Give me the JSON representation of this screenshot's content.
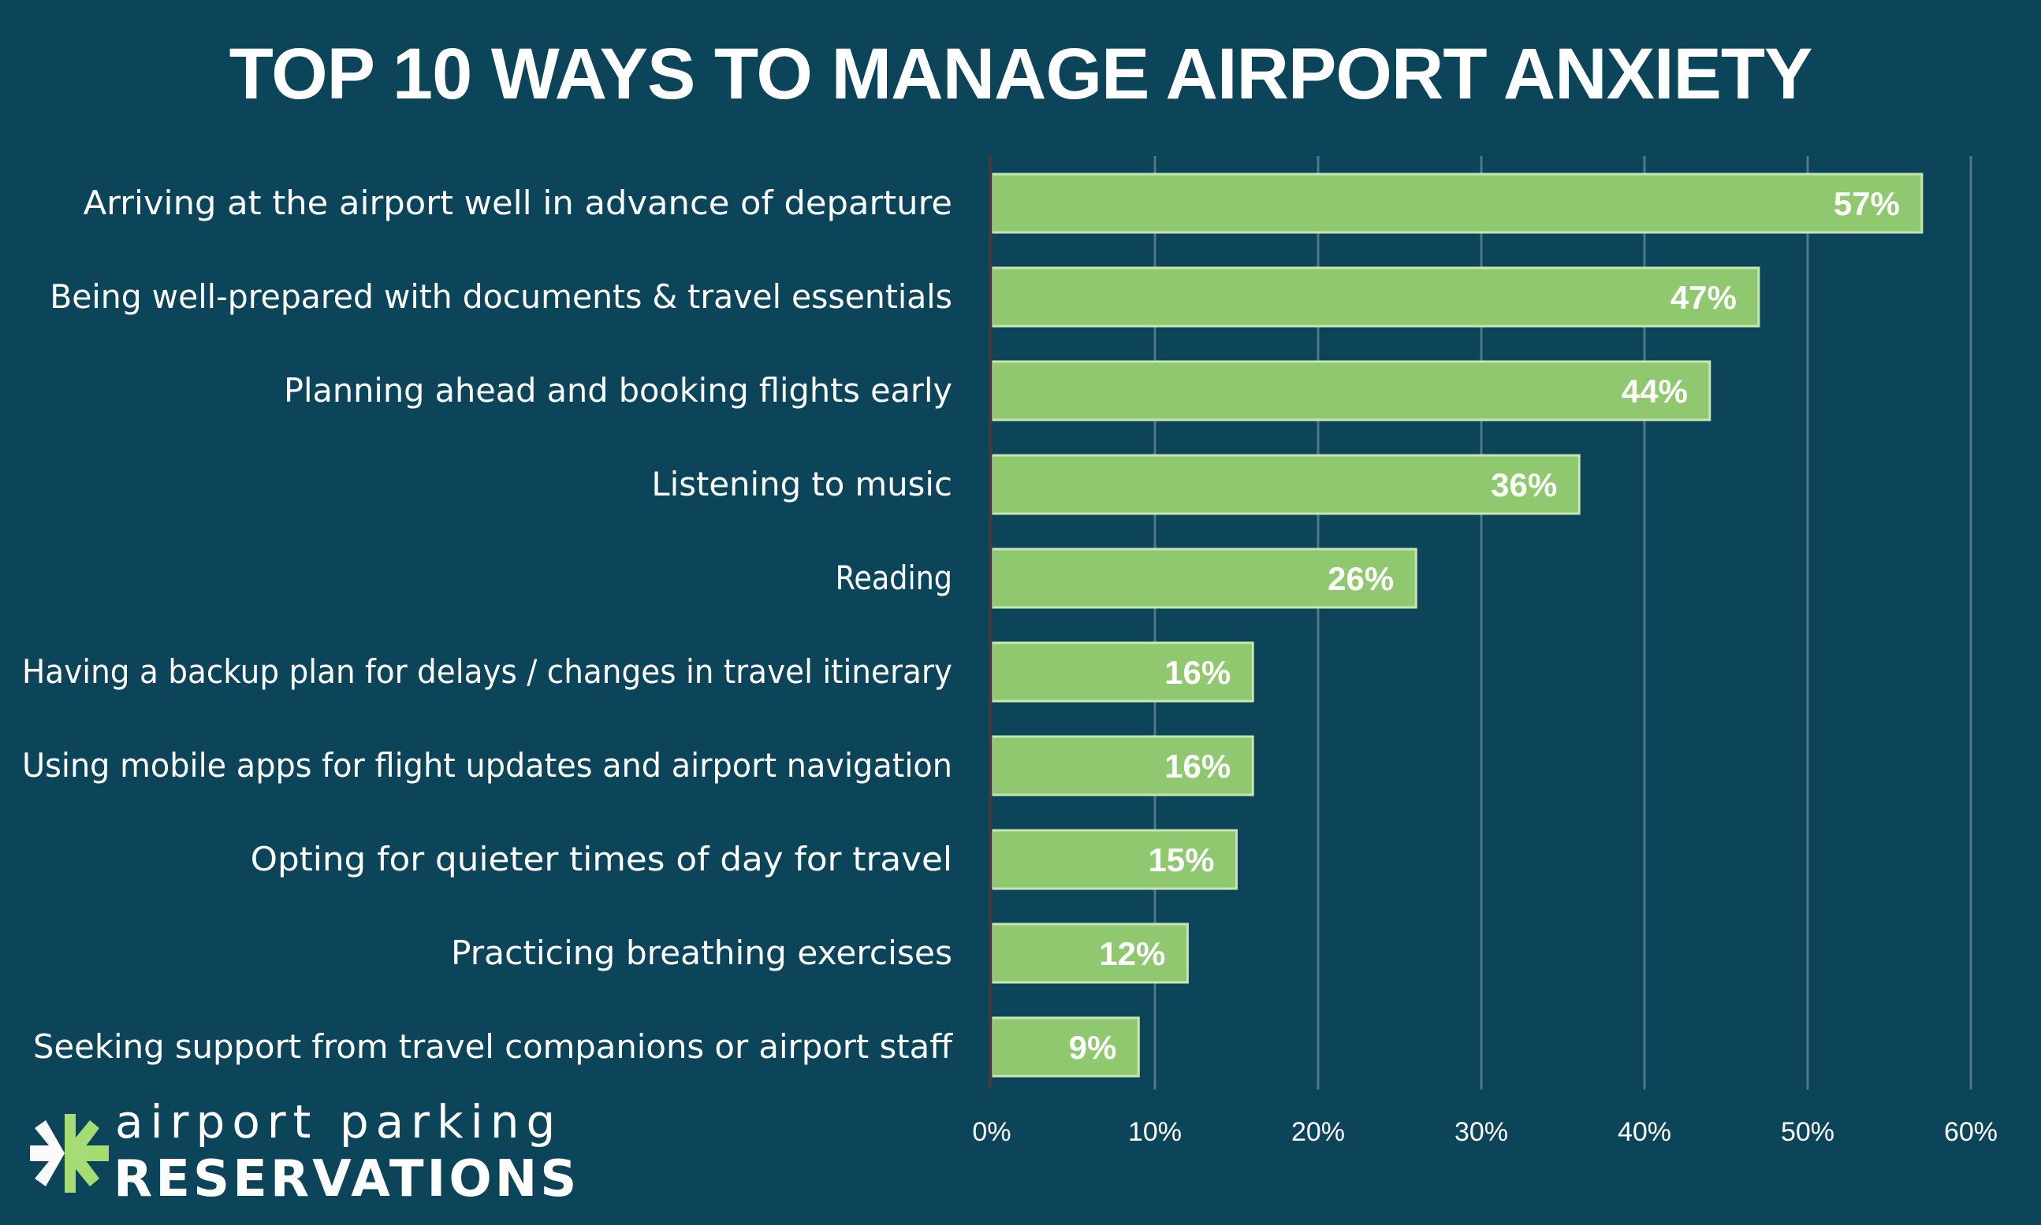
{
  "chart_data": {
    "type": "bar",
    "orientation": "horizontal",
    "title": "TOP 10 WAYS TO MANAGE AIRPORT ANXIETY",
    "categories": [
      "Arriving at the airport well in advance of departure",
      "Being well-prepared with documents & travel essentials",
      "Planning ahead and booking flights early",
      "Listening to music",
      "Reading",
      "Having a backup plan for delays / changes in travel itinerary",
      "Using mobile apps for flight updates and airport navigation",
      "Opting for quieter times of day for travel",
      "Practicing breathing exercises",
      "Seeking support from travel companions or airport staff"
    ],
    "values": [
      57,
      47,
      44,
      36,
      26,
      16,
      16,
      15,
      12,
      9
    ],
    "data_labels": [
      "57%",
      "47%",
      "44%",
      "36%",
      "26%",
      "16%",
      "16%",
      "15%",
      "12%",
      "9%"
    ],
    "xlim": [
      0,
      60
    ],
    "ticks": [
      "0%",
      "10%",
      "20%",
      "30%",
      "40%",
      "50%",
      "60%"
    ],
    "grid": true,
    "colors": {
      "background": "#0c4559",
      "bar": "#90c870",
      "bar_border": "#c8e6b4"
    }
  },
  "logo": {
    "line1": "airport parking",
    "line2": "RESERVATIONS"
  }
}
